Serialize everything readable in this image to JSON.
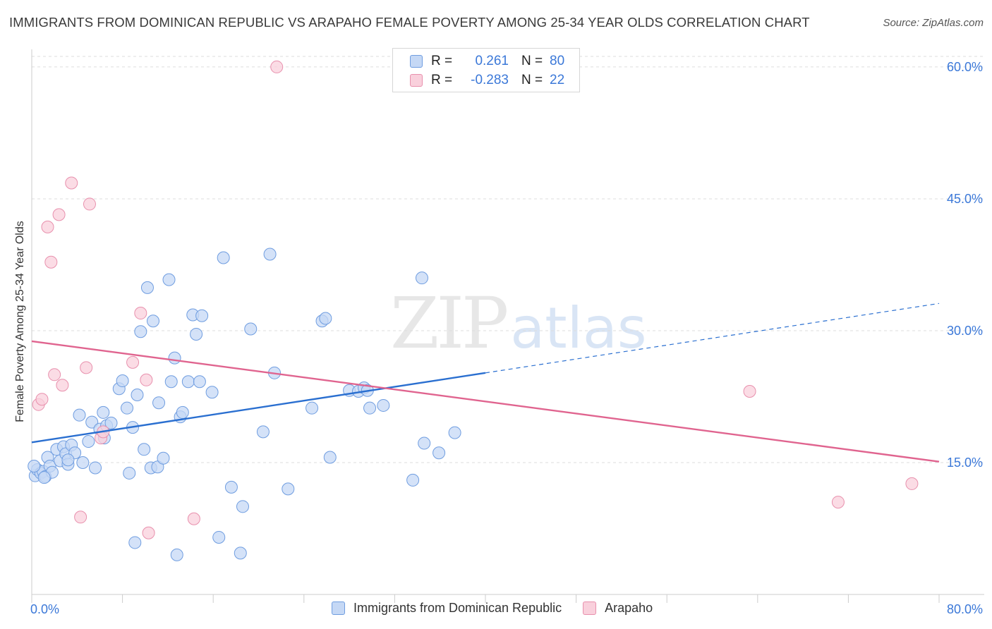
{
  "title": "IMMIGRANTS FROM DOMINICAN REPUBLIC VS ARAPAHO FEMALE POVERTY AMONG 25-34 YEAR OLDS CORRELATION CHART",
  "source": "Source: ZipAtlas.com",
  "watermark": {
    "zip": "ZIP",
    "atlas": "atlas"
  },
  "legend": {
    "rows": [
      {
        "r_label": "R =",
        "r_value": "0.261",
        "n_label": "N =",
        "n_value": "80"
      },
      {
        "r_label": "R =",
        "r_value": "-0.283",
        "n_label": "N =",
        "n_value": "22"
      }
    ]
  },
  "bottom_legend": [
    "Immigrants from Dominican Republic",
    "Arapaho"
  ],
  "colors": {
    "blue_fill": "#c5d8f5",
    "blue_stroke": "#6f9de0",
    "blue_line": "#2a6fd0",
    "pink_fill": "#f9d0dc",
    "pink_stroke": "#e890ad",
    "pink_line": "#e0648f",
    "tick_text": "#3b78d8",
    "grid": "#dddddd"
  },
  "chart_data": {
    "type": "scatter",
    "title": "IMMIGRANTS FROM DOMINICAN REPUBLIC VS ARAPAHO FEMALE POVERTY AMONG 25-34 YEAR OLDS CORRELATION CHART",
    "xlabel": "",
    "ylabel": "Female Poverty Among 25-34 Year Olds",
    "xlim": [
      0,
      80
    ],
    "ylim": [
      0,
      62
    ],
    "x_tick_labels": [
      "0.0%",
      "80.0%"
    ],
    "y_ticks": [
      15,
      30,
      45,
      60
    ],
    "y_tick_labels": [
      "15.0%",
      "30.0%",
      "45.0%",
      "60.0%"
    ],
    "grid": "horizontal dashed",
    "legend_position": "top-center",
    "series": [
      {
        "name": "Immigrants from Dominican Republic",
        "color": "blue",
        "trend": {
          "x": [
            0,
            40
          ],
          "y": [
            17.3,
            25.2
          ],
          "dashed_extension": {
            "x": [
              40,
              80
            ],
            "y": [
              25.2,
              33.1
            ]
          }
        },
        "points": [
          [
            0.3,
            13.5
          ],
          [
            0.5,
            14.2
          ],
          [
            0.8,
            13.8
          ],
          [
            1.0,
            14.0
          ],
          [
            1.2,
            13.4
          ],
          [
            1.4,
            15.6
          ],
          [
            1.6,
            14.6
          ],
          [
            1.8,
            13.9
          ],
          [
            2.2,
            16.5
          ],
          [
            2.5,
            15.2
          ],
          [
            2.8,
            16.8
          ],
          [
            3.0,
            16.0
          ],
          [
            3.2,
            14.8
          ],
          [
            3.5,
            17.0
          ],
          [
            3.8,
            16.1
          ],
          [
            4.2,
            20.4
          ],
          [
            4.5,
            15.0
          ],
          [
            5.0,
            17.4
          ],
          [
            5.3,
            19.6
          ],
          [
            5.6,
            14.4
          ],
          [
            6.0,
            18.8
          ],
          [
            6.3,
            20.7
          ],
          [
            6.6,
            19.2
          ],
          [
            7.0,
            19.5
          ],
          [
            7.7,
            23.4
          ],
          [
            8.0,
            24.3
          ],
          [
            8.4,
            21.2
          ],
          [
            8.6,
            13.8
          ],
          [
            8.9,
            19.0
          ],
          [
            9.3,
            22.7
          ],
          [
            9.6,
            29.9
          ],
          [
            9.9,
            16.5
          ],
          [
            10.2,
            34.9
          ],
          [
            10.5,
            14.4
          ],
          [
            10.7,
            31.1
          ],
          [
            11.1,
            14.5
          ],
          [
            11.2,
            21.8
          ],
          [
            11.6,
            15.5
          ],
          [
            12.1,
            35.8
          ],
          [
            12.3,
            24.2
          ],
          [
            12.6,
            26.9
          ],
          [
            13.1,
            20.2
          ],
          [
            13.3,
            20.7
          ],
          [
            13.8,
            24.2
          ],
          [
            14.2,
            31.8
          ],
          [
            14.5,
            29.6
          ],
          [
            14.8,
            24.2
          ],
          [
            15.0,
            31.7
          ],
          [
            15.9,
            23.0
          ],
          [
            16.5,
            6.5
          ],
          [
            16.9,
            38.3
          ],
          [
            17.6,
            12.2
          ],
          [
            18.4,
            4.7
          ],
          [
            18.6,
            10.0
          ],
          [
            19.3,
            30.2
          ],
          [
            20.4,
            18.5
          ],
          [
            21.0,
            38.7
          ],
          [
            21.4,
            25.2
          ],
          [
            22.6,
            12.0
          ],
          [
            24.7,
            21.2
          ],
          [
            25.6,
            31.1
          ],
          [
            25.9,
            31.4
          ],
          [
            26.3,
            15.6
          ],
          [
            28.0,
            23.2
          ],
          [
            28.8,
            23.1
          ],
          [
            29.3,
            23.5
          ],
          [
            29.6,
            23.2
          ],
          [
            29.8,
            21.2
          ],
          [
            31.0,
            21.5
          ],
          [
            33.6,
            13.0
          ],
          [
            34.4,
            36.0
          ],
          [
            34.6,
            17.2
          ],
          [
            35.9,
            16.1
          ],
          [
            37.3,
            18.4
          ],
          [
            9.1,
            5.9
          ],
          [
            12.8,
            4.5
          ],
          [
            3.2,
            15.3
          ],
          [
            6.4,
            17.8
          ],
          [
            1.1,
            13.3
          ],
          [
            0.2,
            14.6
          ]
        ]
      },
      {
        "name": "Arapaho",
        "color": "pink",
        "trend": {
          "x": [
            0,
            80
          ],
          "y": [
            28.8,
            15.1
          ]
        },
        "points": [
          [
            0.6,
            21.6
          ],
          [
            0.9,
            22.2
          ],
          [
            1.4,
            41.8
          ],
          [
            1.7,
            37.8
          ],
          [
            2.0,
            25.0
          ],
          [
            2.4,
            43.2
          ],
          [
            2.7,
            23.8
          ],
          [
            3.5,
            46.8
          ],
          [
            4.3,
            8.8
          ],
          [
            4.8,
            25.8
          ],
          [
            5.1,
            44.4
          ],
          [
            6.1,
            17.8
          ],
          [
            6.3,
            18.5
          ],
          [
            8.9,
            26.4
          ],
          [
            9.6,
            32.0
          ],
          [
            10.1,
            24.4
          ],
          [
            10.3,
            7.0
          ],
          [
            14.3,
            8.6
          ],
          [
            21.6,
            60.0
          ],
          [
            63.3,
            23.1
          ],
          [
            71.1,
            10.5
          ],
          [
            77.6,
            12.6
          ]
        ]
      }
    ]
  }
}
